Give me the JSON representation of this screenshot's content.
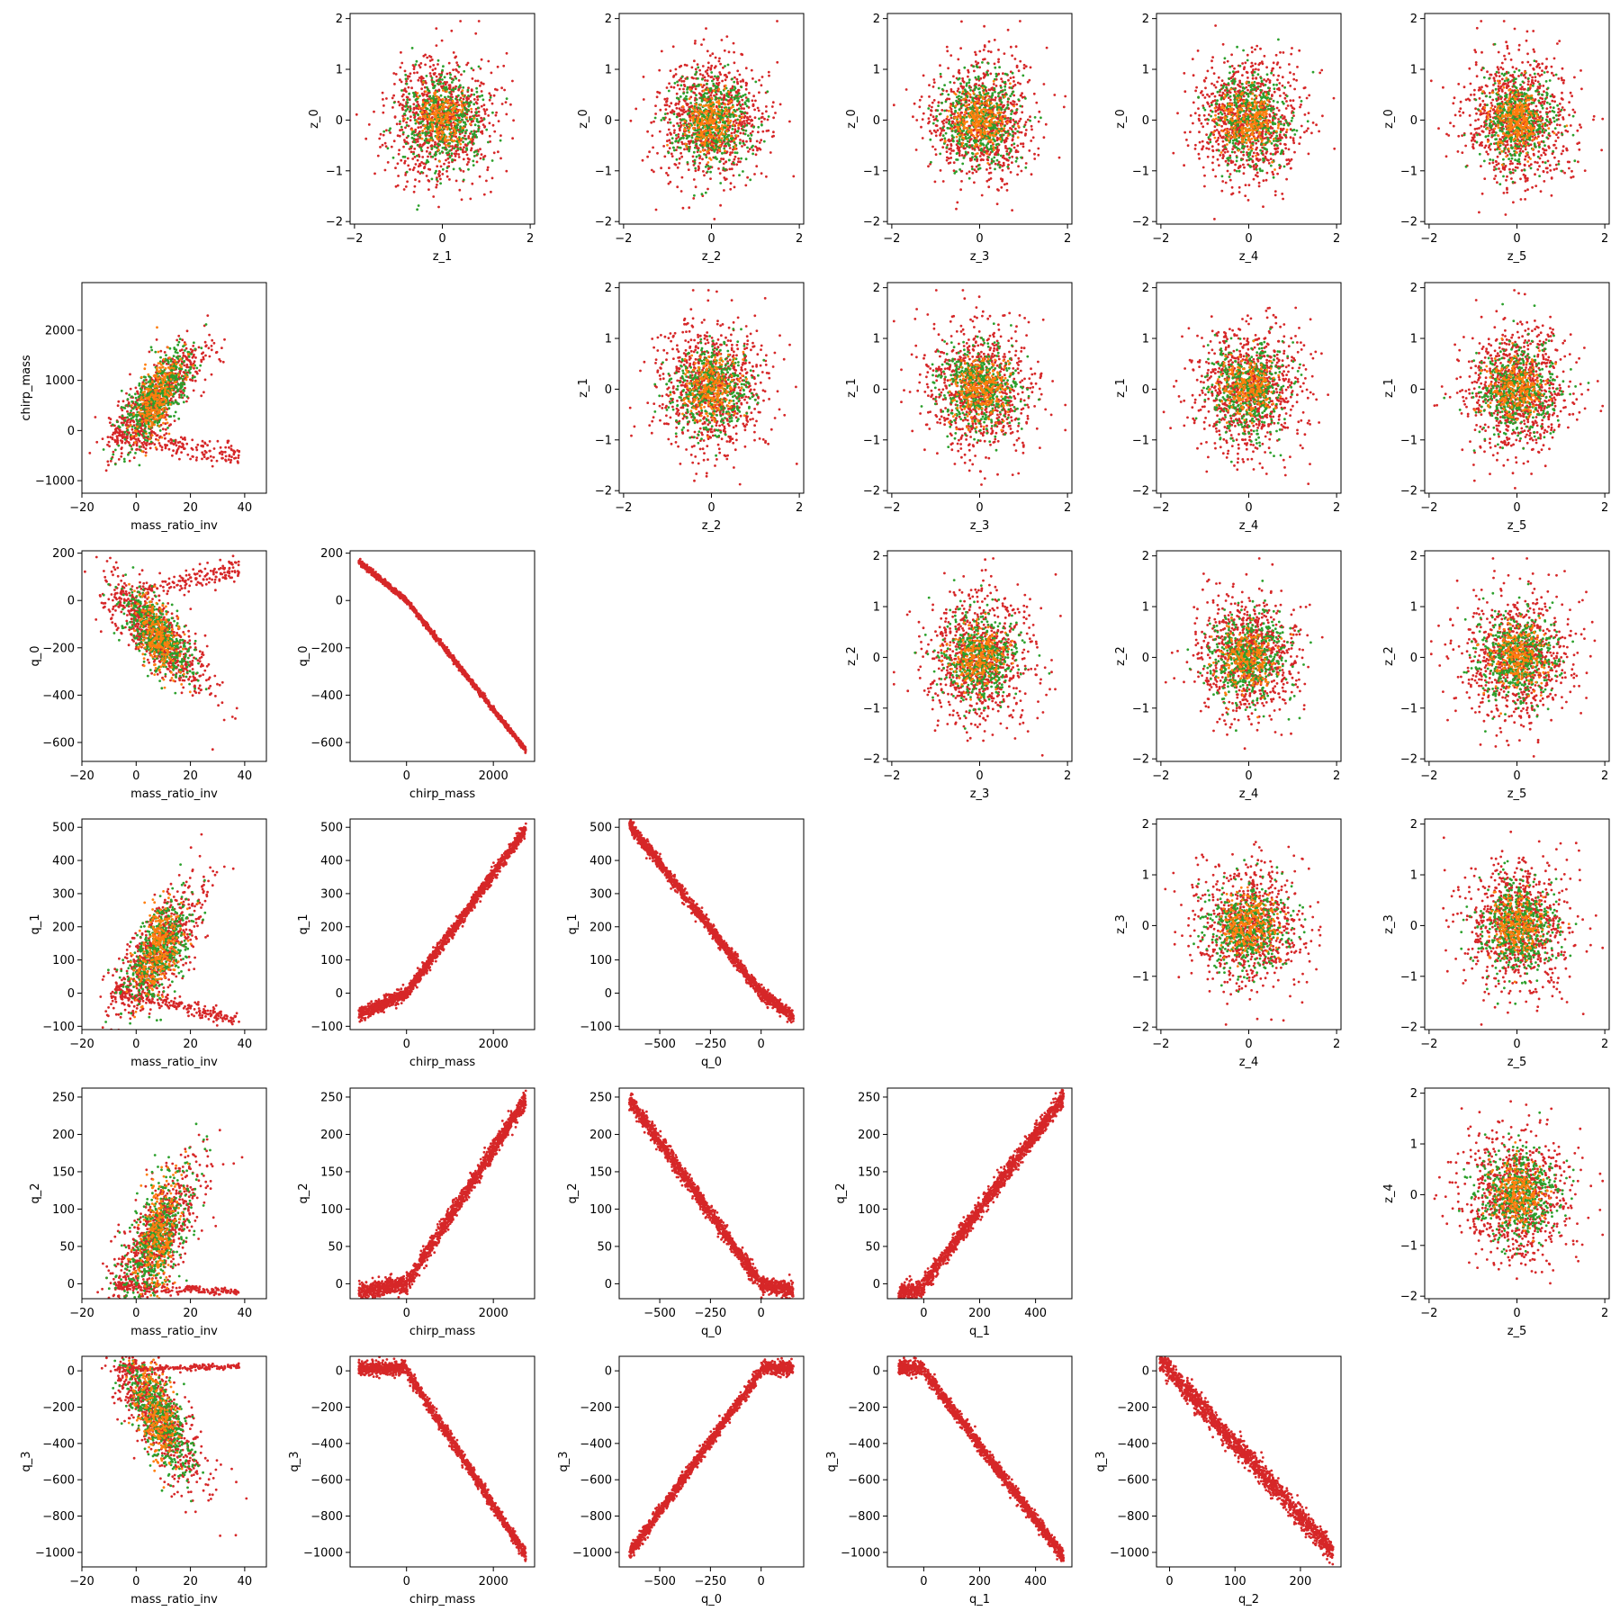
{
  "colors": {
    "red": "#d62728",
    "green": "#2ca02c",
    "orange": "#ff7f0e"
  },
  "chart_data": [
    {
      "type": "scatter",
      "row": 0,
      "col": 1,
      "xlabel": "z_1",
      "ylabel": "z_0",
      "xlim": [
        -2.1,
        2.1
      ],
      "ylim": [
        -2.05,
        2.1
      ],
      "xticks": [
        -2,
        0,
        2
      ],
      "yticks": [
        -2,
        -1,
        0,
        1,
        2
      ],
      "shape": "blob"
    },
    {
      "type": "scatter",
      "row": 0,
      "col": 2,
      "xlabel": "z_2",
      "ylabel": "z_0",
      "xlim": [
        -2.1,
        2.1
      ],
      "ylim": [
        -2.05,
        2.1
      ],
      "xticks": [
        -2,
        0,
        2
      ],
      "yticks": [
        -2,
        -1,
        0,
        1,
        2
      ],
      "shape": "blob"
    },
    {
      "type": "scatter",
      "row": 0,
      "col": 3,
      "xlabel": "z_3",
      "ylabel": "z_0",
      "xlim": [
        -2.1,
        2.1
      ],
      "ylim": [
        -2.05,
        2.1
      ],
      "xticks": [
        -2,
        0,
        2
      ],
      "yticks": [
        -2,
        -1,
        0,
        1,
        2
      ],
      "shape": "blob"
    },
    {
      "type": "scatter",
      "row": 0,
      "col": 4,
      "xlabel": "z_4",
      "ylabel": "z_0",
      "xlim": [
        -2.1,
        2.1
      ],
      "ylim": [
        -2.05,
        2.1
      ],
      "xticks": [
        -2,
        0,
        2
      ],
      "yticks": [
        -2,
        -1,
        0,
        1,
        2
      ],
      "shape": "blob"
    },
    {
      "type": "scatter",
      "row": 0,
      "col": 5,
      "xlabel": "z_5",
      "ylabel": "z_0",
      "xlim": [
        -2.1,
        2.1
      ],
      "ylim": [
        -2.05,
        2.1
      ],
      "xticks": [
        -2,
        0,
        2
      ],
      "yticks": [
        -2,
        -1,
        0,
        1,
        2
      ],
      "shape": "blob"
    },
    {
      "type": "scatter",
      "row": 1,
      "col": 0,
      "xlabel": "mass_ratio_inv",
      "ylabel": "chirp_mass",
      "xlim": [
        -20,
        48
      ],
      "ylim": [
        -1250,
        2950
      ],
      "xticks": [
        -20,
        0,
        20,
        40
      ],
      "yticks": [
        -1000,
        0,
        1000,
        2000
      ],
      "shape": "chirp_vs_mri"
    },
    {
      "type": "scatter",
      "row": 1,
      "col": 2,
      "xlabel": "z_2",
      "ylabel": "z_1",
      "xlim": [
        -2.1,
        2.1
      ],
      "ylim": [
        -2.05,
        2.1
      ],
      "xticks": [
        -2,
        0,
        2
      ],
      "yticks": [
        -2,
        -1,
        0,
        1,
        2
      ],
      "shape": "blob"
    },
    {
      "type": "scatter",
      "row": 1,
      "col": 3,
      "xlabel": "z_3",
      "ylabel": "z_1",
      "xlim": [
        -2.1,
        2.1
      ],
      "ylim": [
        -2.05,
        2.1
      ],
      "xticks": [
        -2,
        0,
        2
      ],
      "yticks": [
        -2,
        -1,
        0,
        1,
        2
      ],
      "shape": "blob"
    },
    {
      "type": "scatter",
      "row": 1,
      "col": 4,
      "xlabel": "z_4",
      "ylabel": "z_1",
      "xlim": [
        -2.1,
        2.1
      ],
      "ylim": [
        -2.05,
        2.1
      ],
      "xticks": [
        -2,
        0,
        2
      ],
      "yticks": [
        -2,
        -1,
        0,
        1,
        2
      ],
      "shape": "blob"
    },
    {
      "type": "scatter",
      "row": 1,
      "col": 5,
      "xlabel": "z_5",
      "ylabel": "z_1",
      "xlim": [
        -2.1,
        2.1
      ],
      "ylim": [
        -2.05,
        2.1
      ],
      "xticks": [
        -2,
        0,
        2
      ],
      "yticks": [
        -2,
        -1,
        0,
        1,
        2
      ],
      "shape": "blob"
    },
    {
      "type": "scatter",
      "row": 2,
      "col": 0,
      "xlabel": "mass_ratio_inv",
      "ylabel": "q_0",
      "xlim": [
        -20,
        48
      ],
      "ylim": [
        -680,
        210
      ],
      "xticks": [
        -20,
        0,
        20,
        40
      ],
      "yticks": [
        -600,
        -400,
        -200,
        0,
        200
      ],
      "shape": "q0_vs_mri"
    },
    {
      "type": "scatter",
      "row": 2,
      "col": 1,
      "xlabel": "chirp_mass",
      "ylabel": "q_0",
      "xlim": [
        -1300,
        2950
      ],
      "ylim": [
        -680,
        210
      ],
      "xticks": [
        0,
        2000
      ],
      "yticks": [
        -600,
        -400,
        -200,
        0,
        200
      ],
      "shape": "q0_vs_chirp"
    },
    {
      "type": "scatter",
      "row": 2,
      "col": 3,
      "xlabel": "z_3",
      "ylabel": "z_2",
      "xlim": [
        -2.1,
        2.1
      ],
      "ylim": [
        -2.05,
        2.1
      ],
      "xticks": [
        -2,
        0,
        2
      ],
      "yticks": [
        -2,
        -1,
        0,
        1,
        2
      ],
      "shape": "blob"
    },
    {
      "type": "scatter",
      "row": 2,
      "col": 4,
      "xlabel": "z_4",
      "ylabel": "z_2",
      "xlim": [
        -2.1,
        2.1
      ],
      "ylim": [
        -2.05,
        2.1
      ],
      "xticks": [
        -2,
        0,
        2
      ],
      "yticks": [
        -2,
        -1,
        0,
        1,
        2
      ],
      "shape": "blob"
    },
    {
      "type": "scatter",
      "row": 2,
      "col": 5,
      "xlabel": "z_5",
      "ylabel": "z_2",
      "xlim": [
        -2.1,
        2.1
      ],
      "ylim": [
        -2.05,
        2.1
      ],
      "xticks": [
        -2,
        0,
        2
      ],
      "yticks": [
        -2,
        -1,
        0,
        1,
        2
      ],
      "shape": "blob"
    },
    {
      "type": "scatter",
      "row": 3,
      "col": 0,
      "xlabel": "mass_ratio_inv",
      "ylabel": "q_1",
      "xlim": [
        -20,
        48
      ],
      "ylim": [
        -110,
        525
      ],
      "xticks": [
        -20,
        0,
        20,
        40
      ],
      "yticks": [
        -100,
        0,
        100,
        200,
        300,
        400,
        500
      ],
      "shape": "q1_vs_mri"
    },
    {
      "type": "scatter",
      "row": 3,
      "col": 1,
      "xlabel": "chirp_mass",
      "ylabel": "q_1",
      "xlim": [
        -1300,
        2950
      ],
      "ylim": [
        -110,
        525
      ],
      "xticks": [
        0,
        2000
      ],
      "yticks": [
        -100,
        0,
        100,
        200,
        300,
        400,
        500
      ],
      "shape": "q1_vs_chirp"
    },
    {
      "type": "scatter",
      "row": 3,
      "col": 2,
      "xlabel": "q_0",
      "ylabel": "q_1",
      "xlim": [
        -700,
        210
      ],
      "ylim": [
        -110,
        525
      ],
      "xticks": [
        -500,
        -250,
        0
      ],
      "yticks": [
        -100,
        0,
        100,
        200,
        300,
        400,
        500
      ],
      "shape": "q1_vs_q0"
    },
    {
      "type": "scatter",
      "row": 3,
      "col": 4,
      "xlabel": "z_4",
      "ylabel": "z_3",
      "xlim": [
        -2.1,
        2.1
      ],
      "ylim": [
        -2.05,
        2.1
      ],
      "xticks": [
        -2,
        0,
        2
      ],
      "yticks": [
        -2,
        -1,
        0,
        1,
        2
      ],
      "shape": "blob"
    },
    {
      "type": "scatter",
      "row": 3,
      "col": 5,
      "xlabel": "z_5",
      "ylabel": "z_3",
      "xlim": [
        -2.1,
        2.1
      ],
      "ylim": [
        -2.05,
        2.1
      ],
      "xticks": [
        -2,
        0,
        2
      ],
      "yticks": [
        -2,
        -1,
        0,
        1,
        2
      ],
      "shape": "blob"
    },
    {
      "type": "scatter",
      "row": 4,
      "col": 0,
      "xlabel": "mass_ratio_inv",
      "ylabel": "q_2",
      "xlim": [
        -20,
        48
      ],
      "ylim": [
        -20,
        262
      ],
      "xticks": [
        -20,
        0,
        20,
        40
      ],
      "yticks": [
        0,
        50,
        100,
        150,
        200,
        250
      ],
      "shape": "q2_vs_mri"
    },
    {
      "type": "scatter",
      "row": 4,
      "col": 1,
      "xlabel": "chirp_mass",
      "ylabel": "q_2",
      "xlim": [
        -1300,
        2950
      ],
      "ylim": [
        -20,
        262
      ],
      "xticks": [
        0,
        2000
      ],
      "yticks": [
        0,
        50,
        100,
        150,
        200,
        250
      ],
      "shape": "q2_vs_chirp"
    },
    {
      "type": "scatter",
      "row": 4,
      "col": 2,
      "xlabel": "q_0",
      "ylabel": "q_2",
      "xlim": [
        -700,
        210
      ],
      "ylim": [
        -20,
        262
      ],
      "xticks": [
        -500,
        -250,
        0
      ],
      "yticks": [
        0,
        50,
        100,
        150,
        200,
        250
      ],
      "shape": "q2_vs_q0"
    },
    {
      "type": "scatter",
      "row": 4,
      "col": 3,
      "xlabel": "q_1",
      "ylabel": "q_2",
      "xlim": [
        -130,
        530
      ],
      "ylim": [
        -20,
        262
      ],
      "xticks": [
        0,
        200,
        400
      ],
      "yticks": [
        0,
        50,
        100,
        150,
        200,
        250
      ],
      "shape": "q2_vs_q1"
    },
    {
      "type": "scatter",
      "row": 4,
      "col": 5,
      "xlabel": "z_5",
      "ylabel": "z_4",
      "xlim": [
        -2.1,
        2.1
      ],
      "ylim": [
        -2.05,
        2.1
      ],
      "xticks": [
        -2,
        0,
        2
      ],
      "yticks": [
        -2,
        -1,
        0,
        1,
        2
      ],
      "shape": "blob"
    },
    {
      "type": "scatter",
      "row": 5,
      "col": 0,
      "xlabel": "mass_ratio_inv",
      "ylabel": "q_3",
      "xlim": [
        -20,
        48
      ],
      "ylim": [
        -1080,
        80
      ],
      "xticks": [
        -20,
        0,
        20,
        40
      ],
      "yticks": [
        -1000,
        -800,
        -600,
        -400,
        -200,
        0
      ],
      "shape": "q3_vs_mri"
    },
    {
      "type": "scatter",
      "row": 5,
      "col": 1,
      "xlabel": "chirp_mass",
      "ylabel": "q_3",
      "xlim": [
        -1300,
        2950
      ],
      "ylim": [
        -1080,
        80
      ],
      "xticks": [
        0,
        2000
      ],
      "yticks": [
        -1000,
        -800,
        -600,
        -400,
        -200,
        0
      ],
      "shape": "q3_vs_chirp"
    },
    {
      "type": "scatter",
      "row": 5,
      "col": 2,
      "xlabel": "q_0",
      "ylabel": "q_3",
      "xlim": [
        -700,
        210
      ],
      "ylim": [
        -1080,
        80
      ],
      "xticks": [
        -500,
        -250,
        0
      ],
      "yticks": [
        -1000,
        -800,
        -600,
        -400,
        -200,
        0
      ],
      "shape": "q3_vs_q0"
    },
    {
      "type": "scatter",
      "row": 5,
      "col": 3,
      "xlabel": "q_1",
      "ylabel": "q_3",
      "xlim": [
        -130,
        530
      ],
      "ylim": [
        -1080,
        80
      ],
      "xticks": [
        0,
        200,
        400
      ],
      "yticks": [
        -1000,
        -800,
        -600,
        -400,
        -200,
        0
      ],
      "shape": "q3_vs_q1"
    },
    {
      "type": "scatter",
      "row": 5,
      "col": 4,
      "xlabel": "q_2",
      "ylabel": "q_3",
      "xlim": [
        -20,
        262
      ],
      "ylim": [
        -1080,
        80
      ],
      "xticks": [
        0,
        100,
        200
      ],
      "yticks": [
        -1000,
        -800,
        -600,
        -400,
        -200,
        0
      ],
      "shape": "q3_vs_q2"
    }
  ]
}
